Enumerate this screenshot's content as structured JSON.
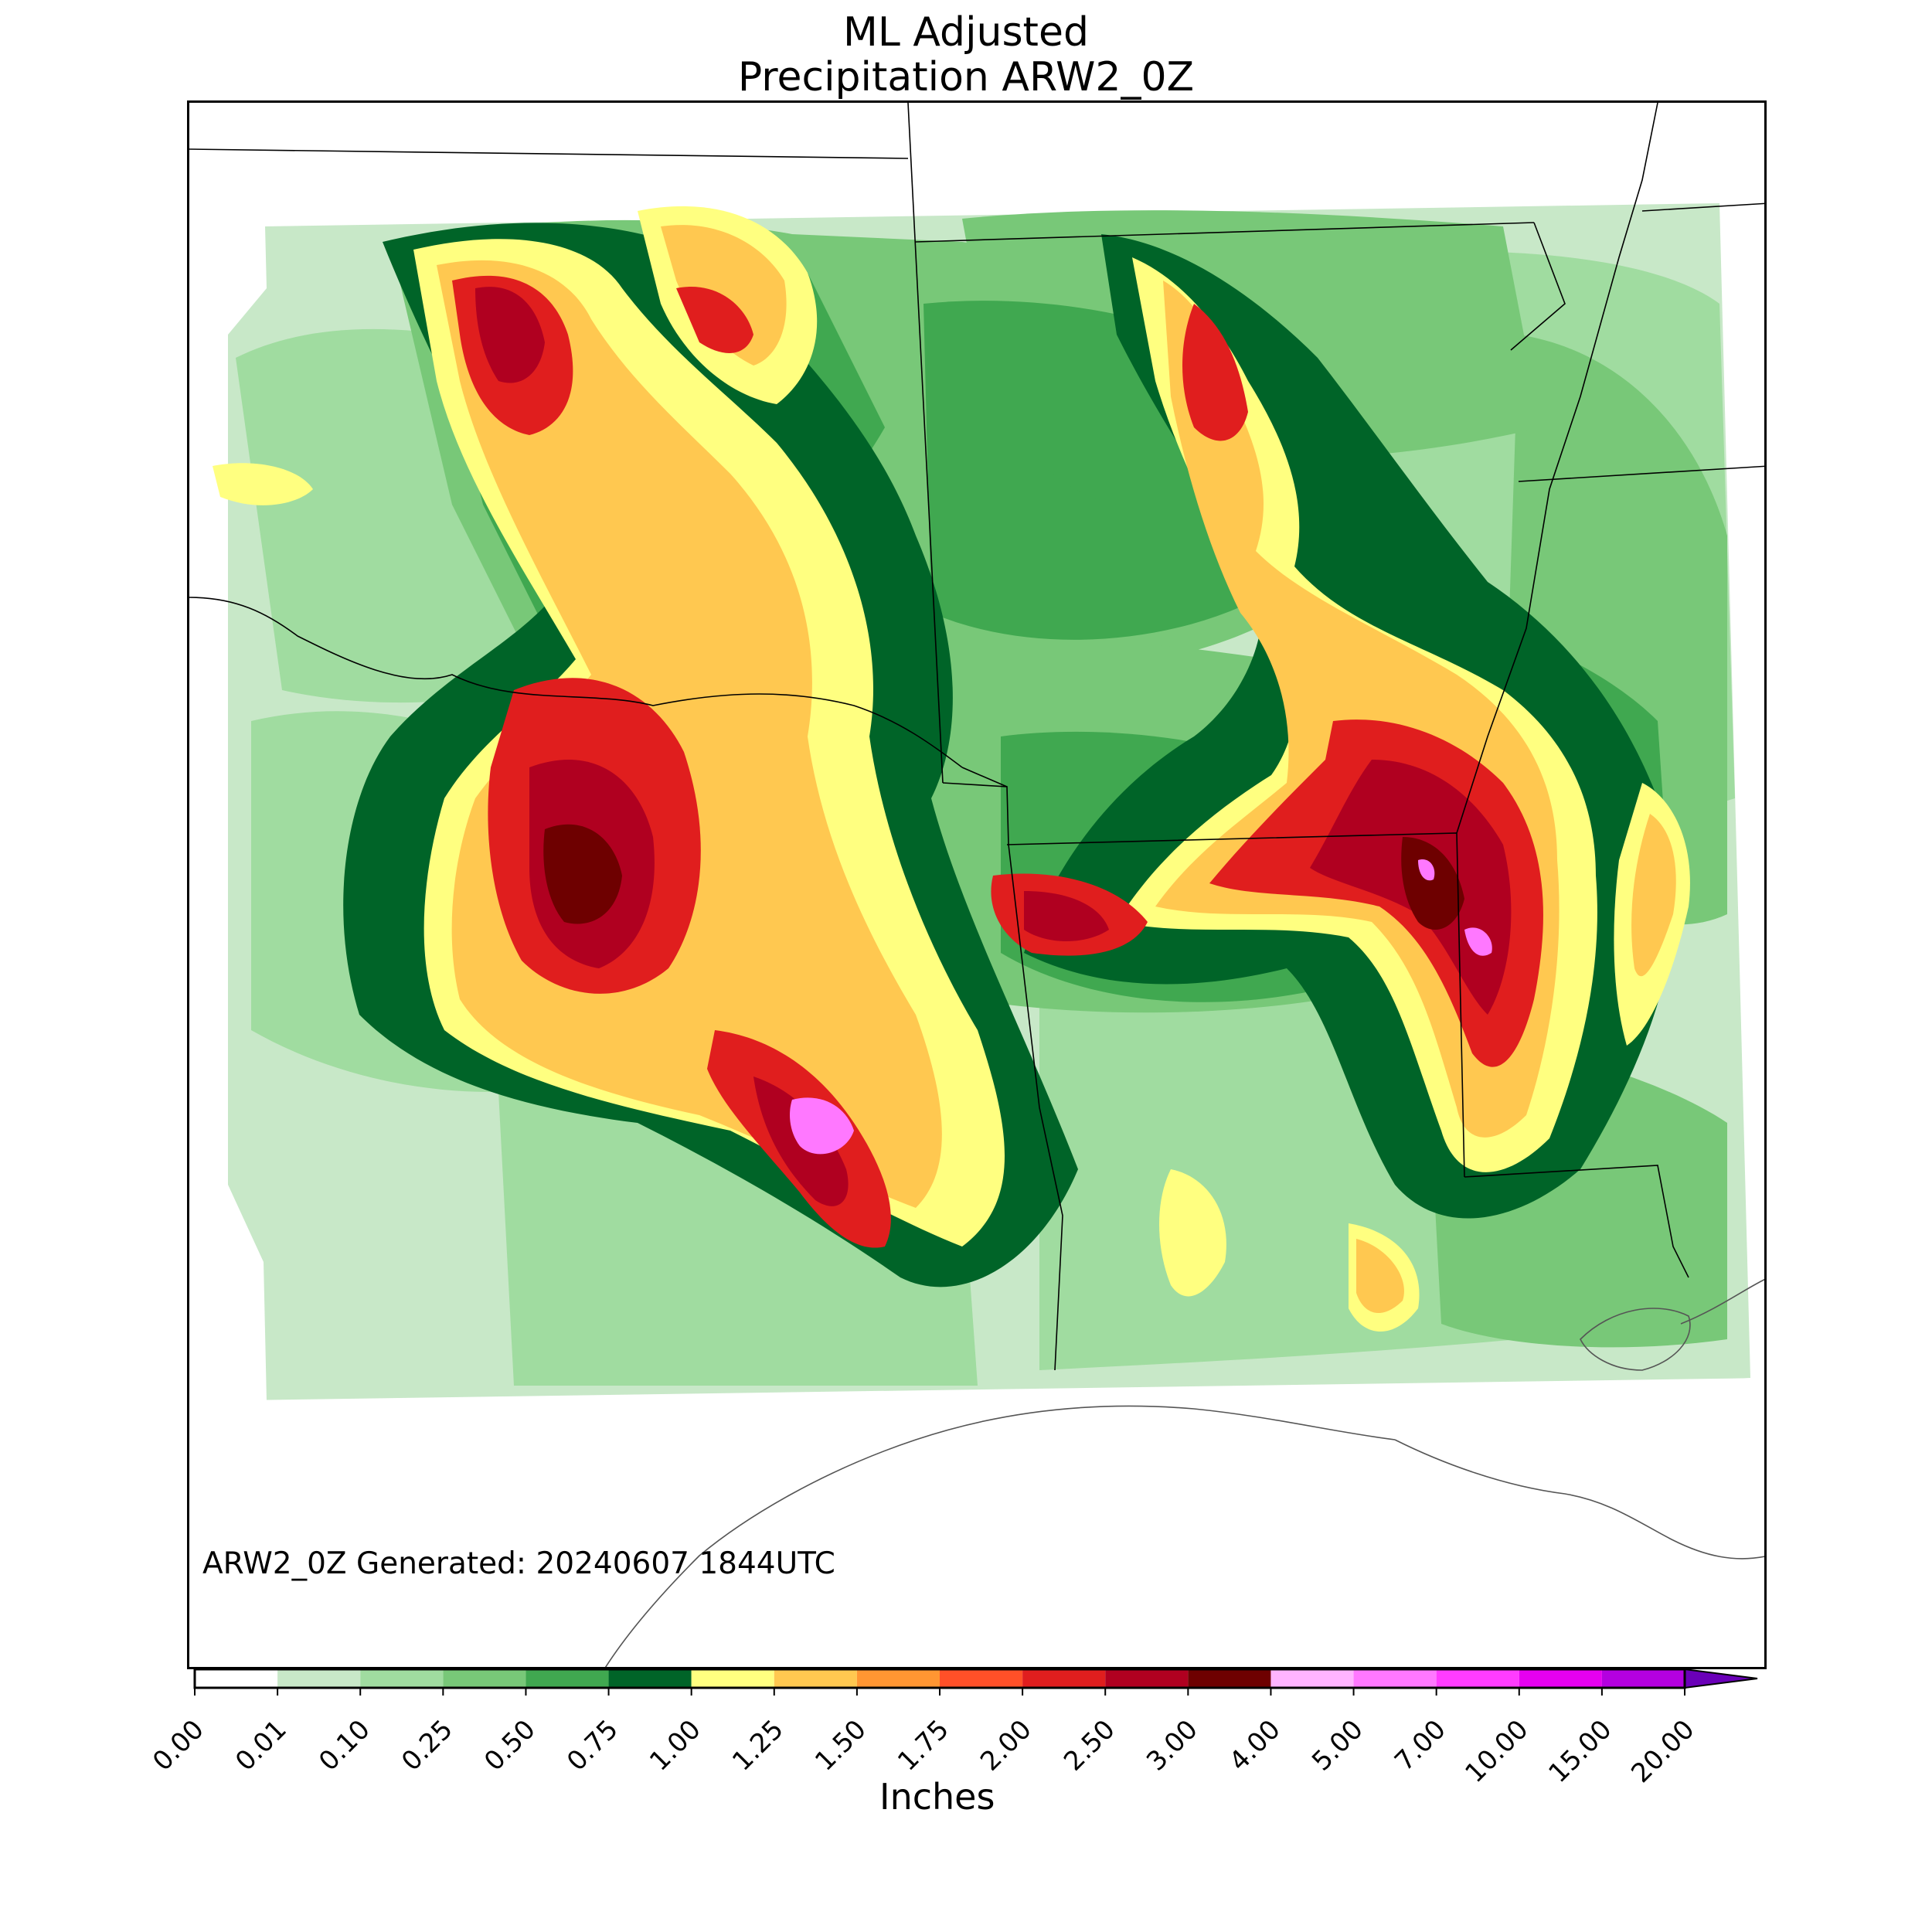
{
  "title": {
    "line1": "ML Adjusted",
    "line2": "Precipitation ARW2_0Z"
  },
  "stamp": "ARW2_0Z Generated: 20240607 1844UTC",
  "colorbar": {
    "label": "Inches",
    "ticks": [
      "0.00",
      "0.01",
      "0.10",
      "0.25",
      "0.50",
      "0.75",
      "1.00",
      "1.25",
      "1.50",
      "1.75",
      "2.00",
      "2.50",
      "3.00",
      "4.00",
      "5.00",
      "7.00",
      "10.00",
      "15.00",
      "20.00"
    ],
    "colors": [
      "#ffffff",
      "#c8e8c8",
      "#a0dca0",
      "#78c878",
      "#40a850",
      "#006428",
      "#ffff80",
      "#ffc850",
      "#ff9632",
      "#ff5028",
      "#e01e1e",
      "#b00020",
      "#6e0000",
      "#ffb4ff",
      "#ff78ff",
      "#ff3cff",
      "#e600f0",
      "#b400e0"
    ],
    "extend_color": "#6a00b8"
  },
  "map": {
    "background_color": "#ffffff",
    "precip_colors": {
      "trace": "#c8e8c8",
      "light": "#a0dca0",
      "moderate": "#78c878",
      "green": "#40a850",
      "dark_green": "#006428",
      "yellow": "#ffff80",
      "orange": "#ffc850",
      "dark_orange": "#ff9632",
      "red": "#e01e1e",
      "dark_red": "#b00020",
      "maroon": "#6e0000",
      "pink": "#ff78ff"
    }
  }
}
